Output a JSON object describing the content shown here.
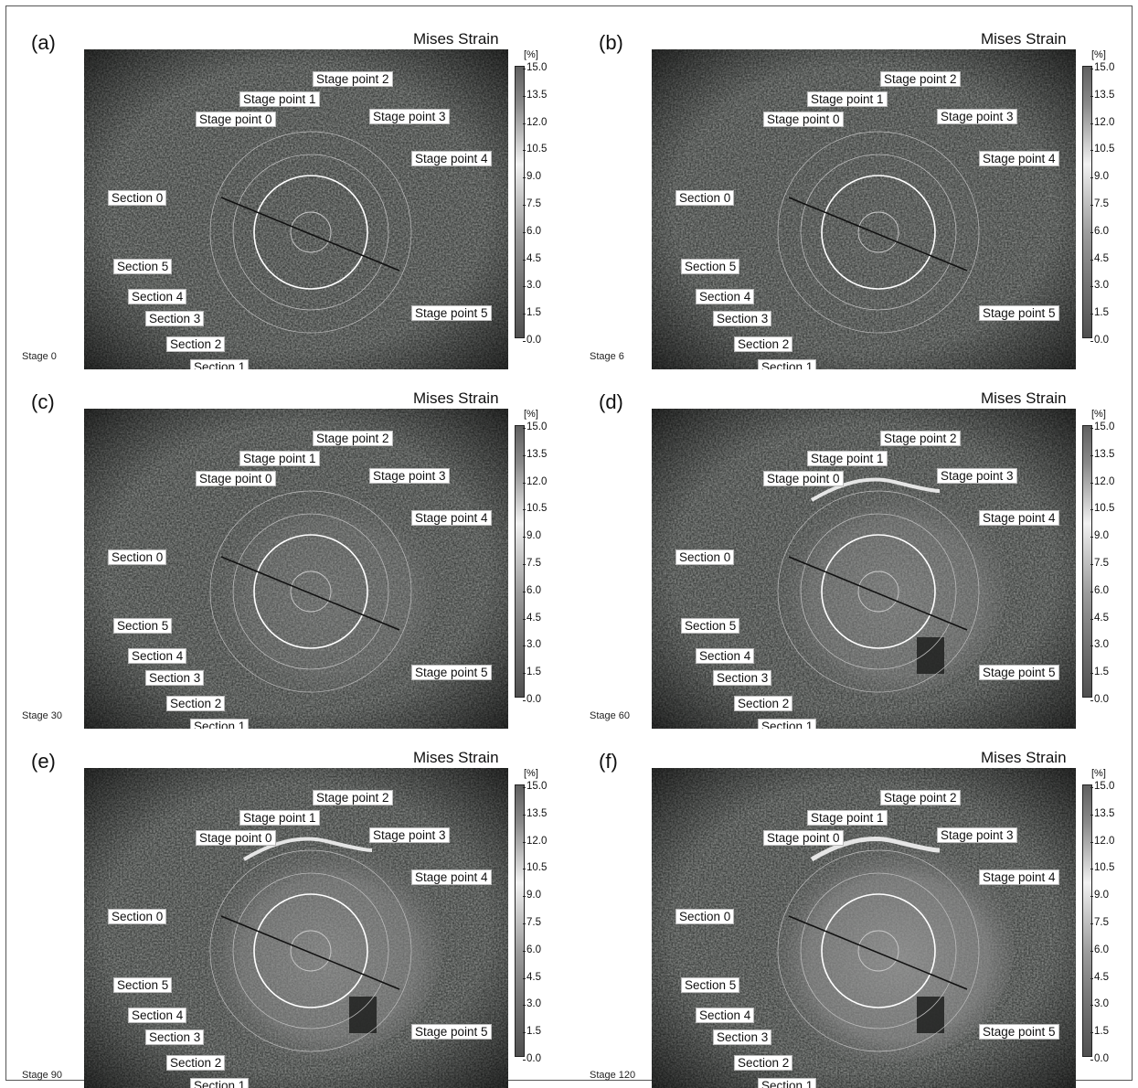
{
  "figure": {
    "colorbar": {
      "unit": "[%]",
      "ticks": [
        "15.0",
        "13.5",
        "12.0",
        "10.5",
        "9.0",
        "7.5",
        "6.0",
        "4.5",
        "3.0",
        "1.5",
        "0.0"
      ]
    },
    "labels": {
      "stage_points": [
        "Stage point 0",
        "Stage point 1",
        "Stage point 2",
        "Stage point 3",
        "Stage point 4",
        "Stage point 5"
      ],
      "sections": [
        "Section 0",
        "Section 1",
        "Section 2",
        "Section 3",
        "Section 4",
        "Section 5"
      ]
    },
    "panels": [
      {
        "letter": "(a)",
        "title": "Mises Strain",
        "stage": "Stage 0"
      },
      {
        "letter": "(b)",
        "title": "Mises Strain",
        "stage": "Stage 6"
      },
      {
        "letter": "(c)",
        "title": "Mises Strain",
        "stage": "Stage 30"
      },
      {
        "letter": "(d)",
        "title": "Mises Strain",
        "stage": "Stage 60"
      },
      {
        "letter": "(e)",
        "title": "Mises Strain",
        "stage": "Stage 90"
      },
      {
        "letter": "(f)",
        "title": "Mises Strain",
        "stage": "Stage 120"
      }
    ]
  }
}
